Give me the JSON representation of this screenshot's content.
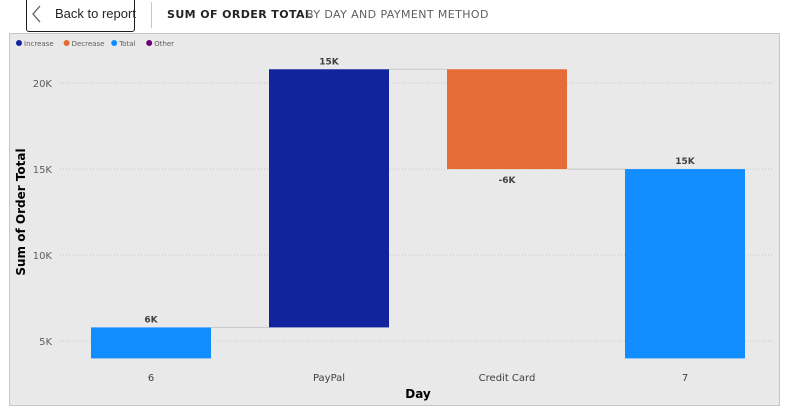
{
  "header": {
    "back_label": "Back to report",
    "title": "SUM OF ORDER TOTAL",
    "subtitle": "BY DAY AND PAYMENT METHOD"
  },
  "chart_data": {
    "type": "waterfall",
    "xlabel": "Day",
    "ylabel": "Sum of Order Total",
    "legend": {
      "position": "top-left",
      "items": [
        {
          "name": "Increase",
          "color": "#12239E"
        },
        {
          "name": "Decrease",
          "color": "#E66C37"
        },
        {
          "name": "Total",
          "color": "#118DFF"
        },
        {
          "name": "Other",
          "color": "#6B007B"
        }
      ]
    },
    "ylim": [
      3500,
      22500
    ],
    "yticks": [
      {
        "value": 5000,
        "label": "5K"
      },
      {
        "value": 10000,
        "label": "10K"
      },
      {
        "value": 15000,
        "label": "15K"
      },
      {
        "value": 20000,
        "label": "20K"
      }
    ],
    "grid": true,
    "bars": [
      {
        "category": "6",
        "kind": "Total",
        "start": 4000,
        "end": 5800,
        "label": "6K",
        "color": "#118DFF"
      },
      {
        "category": "PayPal",
        "kind": "Increase",
        "start": 5800,
        "end": 20800,
        "label": "15K",
        "color": "#12239E"
      },
      {
        "category": "Credit Card",
        "kind": "Decrease",
        "start": 20800,
        "end": 15000,
        "label": "-6K",
        "color": "#E66C37"
      },
      {
        "category": "7",
        "kind": "Total",
        "start": 4000,
        "end": 15000,
        "label": "15K",
        "color": "#118DFF"
      }
    ]
  }
}
